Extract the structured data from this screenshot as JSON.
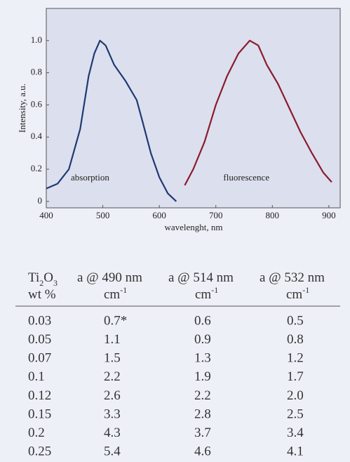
{
  "chart_data": {
    "type": "line",
    "y_label": "Intensity, a.u.",
    "x_label": "wavelenght, nm",
    "xlim": [
      400,
      920
    ],
    "ylim": [
      -0.04,
      1.2
    ],
    "xticks": [
      400,
      500,
      600,
      700,
      800,
      900
    ],
    "yticks": [
      0,
      0.2,
      0.4,
      0.6,
      0.8,
      {
        "value": 1,
        "label": "1.0"
      }
    ],
    "grid": false,
    "series": [
      {
        "name": "absorption",
        "color": "#1f3a72",
        "x": [
          400,
          420,
          440,
          460,
          475,
          485,
          495,
          505,
          520,
          540,
          560,
          570,
          585,
          600,
          615,
          630
        ],
        "values": [
          0.08,
          0.11,
          0.2,
          0.45,
          0.78,
          0.92,
          1.0,
          0.97,
          0.85,
          0.75,
          0.63,
          0.5,
          0.3,
          0.15,
          0.05,
          0.0
        ]
      },
      {
        "name": "fluorescence",
        "color": "#8b1a2e",
        "x": [
          645,
          660,
          680,
          700,
          720,
          740,
          760,
          775,
          790,
          810,
          830,
          850,
          870,
          890,
          905
        ],
        "values": [
          0.1,
          0.2,
          0.37,
          0.6,
          0.78,
          0.92,
          1.0,
          0.97,
          0.85,
          0.73,
          0.58,
          0.43,
          0.3,
          0.18,
          0.12
        ]
      }
    ]
  },
  "table": {
    "columns": [
      {
        "name": [
          "Ti",
          "2",
          "O",
          "3"
        ],
        "unit": [
          "wt %"
        ]
      },
      {
        "name": [
          "a @ 490 nm"
        ],
        "unit": [
          "cm",
          "-1"
        ]
      },
      {
        "name": [
          "a @ 514 nm"
        ],
        "unit": [
          "cm",
          "-1"
        ]
      },
      {
        "name": [
          "a @ 532 nm"
        ],
        "unit": [
          "cm",
          "-1"
        ]
      }
    ],
    "rows": [
      [
        "0.03",
        "0.7*",
        "0.6",
        "0.5"
      ],
      [
        "0.05",
        "1.1",
        "0.9",
        "0.8"
      ],
      [
        "0.07",
        "1.5",
        "1.3",
        "1.2"
      ],
      [
        "0.1",
        "2.2",
        "1.9",
        "1.7"
      ],
      [
        "0.12",
        "2.6",
        "2.2",
        "2.0"
      ],
      [
        "0.15",
        "3.3",
        "2.8",
        "2.5"
      ],
      [
        "0.2",
        "4.3",
        "3.7",
        "3.4"
      ],
      [
        "0.25",
        "5.4",
        "4.6",
        "4.1"
      ]
    ]
  }
}
